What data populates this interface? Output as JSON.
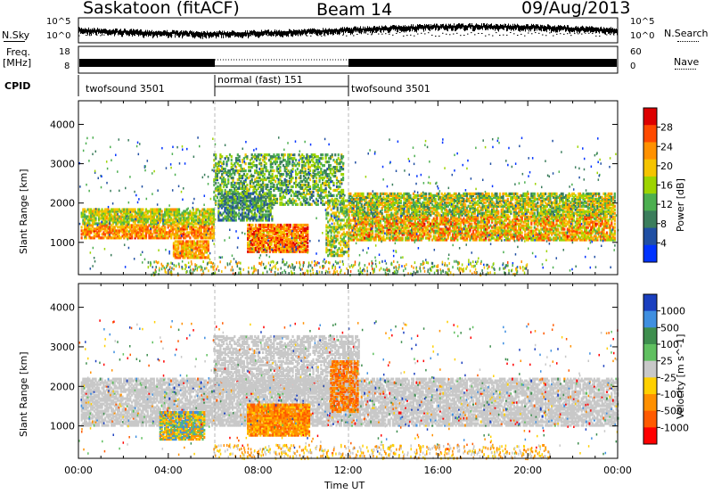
{
  "header": {
    "station": "Saskatoon (fitACF)",
    "beam": "Beam 14",
    "date": "09/Aug/2013"
  },
  "noise_panel": {
    "left_label": "N.Sky",
    "right_label": "N.Search",
    "left_ticks": [
      "10^5",
      "10^0"
    ],
    "right_ticks": [
      "10^5",
      "10^0"
    ]
  },
  "freq_panel": {
    "left_label_line1": "Freq.",
    "left_label_line2": "[MHz]",
    "left_ticks": [
      "18",
      "8"
    ],
    "right_ticks": [
      "60",
      "0"
    ],
    "right_label": "Nave"
  },
  "cpid_panel": {
    "label": "CPID",
    "modes": [
      "twofsound 3501",
      "normal (fast) 151",
      "twofsound 3501"
    ]
  },
  "chart_data": [
    {
      "type": "heatmap",
      "title": "",
      "ylabel": "Slant Range [km]",
      "xlabel": "",
      "ylim": [
        180,
        4600
      ],
      "y_ticks": [
        "1000",
        "2000",
        "3000",
        "4000"
      ],
      "colorbar": {
        "label": "Power [dB]",
        "ticks": [
          "28",
          "24",
          "20",
          "16",
          "12",
          "8",
          "4"
        ],
        "colors": [
          "#dd0000",
          "#ff4a00",
          "#ff9100",
          "#f5c400",
          "#9dd400",
          "#4caf50",
          "#3b7d5c",
          "#204fa3",
          "#0033ff"
        ],
        "range": [
          0,
          30
        ]
      }
    },
    {
      "type": "heatmap",
      "title": "",
      "ylabel": "Slant Range [km]",
      "xlabel": "Time UT",
      "ylim": [
        180,
        4600
      ],
      "y_ticks": [
        "1000",
        "2000",
        "3000",
        "4000"
      ],
      "x_ticks": [
        "00:00",
        "04:00",
        "08:00",
        "12:00",
        "16:00",
        "20:00",
        "00:00"
      ],
      "colorbar": {
        "label": "Velocity [m s^-1]",
        "ticks": [
          "1000",
          "500",
          "100",
          "25",
          "-25",
          "-100",
          "-500",
          "-1000"
        ],
        "colors": [
          "#1a3fbf",
          "#3f8fe0",
          "#3e8e4e",
          "#60c060",
          "#c8c8c8",
          "#ffd000",
          "#ff9000",
          "#ff5a00",
          "#ff0000"
        ],
        "range": [
          -1000,
          1000
        ]
      }
    }
  ]
}
